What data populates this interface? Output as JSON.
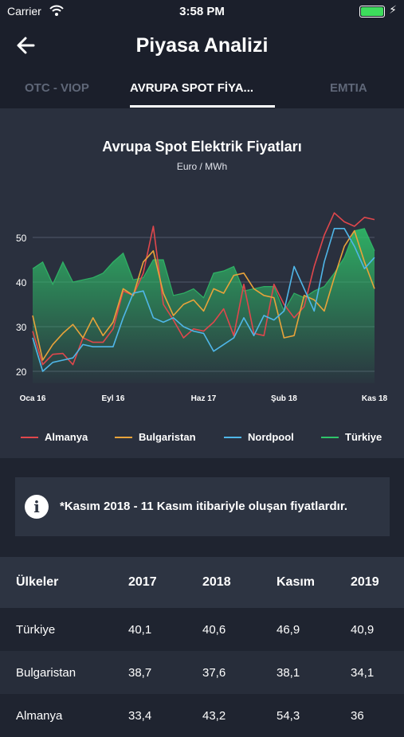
{
  "status_bar": {
    "carrier": "Carrier",
    "time": "3:58 PM"
  },
  "nav": {
    "title": "Piyasa Analizi"
  },
  "tabs": [
    {
      "label": "OTC - VIOP",
      "active": false
    },
    {
      "label": "AVRUPA SPOT FİYA...",
      "active": true
    },
    {
      "label": "EMTIA",
      "active": false
    }
  ],
  "chart_data": {
    "type": "line",
    "title": "Avrupa Spot Elektrik Fiyatları",
    "subtitle": "Euro / MWh",
    "xlabel": "",
    "ylabel": "",
    "ylim": [
      20,
      55
    ],
    "y_ticks": [
      20,
      30,
      40,
      50
    ],
    "x_tick_labels": [
      {
        "label": "Oca 16",
        "index": 0
      },
      {
        "label": "Eyl 16",
        "index": 8
      },
      {
        "label": "Haz 17",
        "index": 17
      },
      {
        "label": "Şub 18",
        "index": 25
      },
      {
        "label": "Kas 18",
        "index": 34
      }
    ],
    "grid": true,
    "legend_position": "bottom",
    "n_points": 35,
    "series": [
      {
        "name": "Almanya",
        "color": "#e0474c",
        "style": "line",
        "values": [
          29.0,
          21.5,
          23.8,
          24.0,
          21.5,
          27.5,
          26.5,
          26.5,
          29.5,
          38.0,
          37.0,
          42.0,
          52.5,
          35.0,
          31.5,
          27.5,
          29.5,
          29.0,
          31.0,
          34.0,
          28.0,
          39.5,
          28.5,
          28.0,
          39.5,
          35.0,
          32.0,
          34.5,
          43.5,
          50.5,
          55.5,
          53.5,
          52.5,
          54.5,
          54.0
        ]
      },
      {
        "name": "Bulgaristan",
        "color": "#e8a33a",
        "style": "line",
        "values": [
          32.5,
          22.5,
          26.0,
          28.5,
          30.5,
          27.5,
          32.0,
          28.0,
          31.0,
          38.5,
          37.0,
          44.5,
          47.0,
          37.5,
          32.5,
          35.0,
          36.0,
          33.5,
          38.5,
          37.5,
          41.5,
          42.0,
          38.5,
          37.0,
          36.5,
          27.5,
          28.0,
          37.0,
          36.0,
          33.5,
          41.0,
          48.0,
          51.5,
          44.5,
          38.5
        ]
      },
      {
        "name": "Nordpool",
        "color": "#4fb6e8",
        "style": "line",
        "values": [
          27.5,
          20.0,
          22.0,
          22.5,
          23.0,
          26.0,
          25.5,
          25.5,
          25.5,
          32.0,
          37.5,
          38.0,
          32.0,
          31.0,
          32.0,
          30.0,
          29.0,
          28.5,
          24.5,
          26.0,
          27.5,
          32.0,
          28.0,
          32.5,
          31.5,
          33.5,
          43.5,
          38.5,
          33.5,
          44.5,
          52.0,
          52.0,
          48.0,
          43.0,
          45.5
        ]
      },
      {
        "name": "Türkiye",
        "color": "#2fc46a",
        "style": "area",
        "values": [
          43.0,
          44.5,
          39.5,
          44.5,
          40.0,
          40.5,
          41.0,
          42.0,
          44.5,
          46.5,
          40.5,
          41.0,
          45.0,
          45.0,
          37.0,
          37.5,
          38.5,
          36.5,
          42.0,
          42.5,
          43.5,
          38.0,
          38.5,
          39.0,
          39.0,
          33.5,
          37.5,
          36.5,
          38.0,
          39.0,
          42.0,
          45.5,
          51.5,
          52.0,
          47.0
        ]
      }
    ]
  },
  "info": {
    "icon": "info-icon",
    "text": "*Kasım 2018 - 11 Kasım itibariyle oluşan fiyatlardır."
  },
  "table": {
    "headers": [
      "Ülkeler",
      "2017",
      "2018",
      "Kasım",
      "2019"
    ],
    "rows": [
      [
        "Türkiye",
        "40,1",
        "40,6",
        "46,9",
        "40,9"
      ],
      [
        "Bulgaristan",
        "38,7",
        "37,6",
        "38,1",
        "34,1"
      ],
      [
        "Almanya",
        "33,4",
        "43,2",
        "54,3",
        "36"
      ]
    ]
  }
}
